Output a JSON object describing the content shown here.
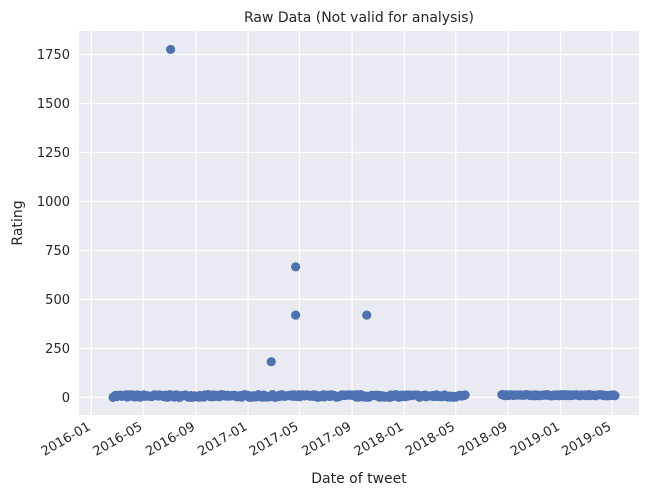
{
  "chart_data": {
    "type": "scatter",
    "title": "Raw Data (Not valid for analysis)",
    "xlabel": "Date of tweet",
    "ylabel": "Rating",
    "x_axis_type": "date",
    "xlim": [
      "2015-12-03",
      "2019-07-03"
    ],
    "ylim": [
      -90,
      1870
    ],
    "x_ticks": [
      "2016-01",
      "2016-05",
      "2016-09",
      "2017-01",
      "2017-05",
      "2017-09",
      "2018-01",
      "2018-05",
      "2018-09",
      "2019-01",
      "2019-05"
    ],
    "y_ticks": [
      0,
      250,
      500,
      750,
      1000,
      1250,
      1500,
      1750
    ],
    "grid": true,
    "colors": {
      "background": "#eaeaf2",
      "grid": "#ffffff",
      "marker": "#4c72b0"
    },
    "outliers": [
      {
        "x": "2016-07-04",
        "y": 1776
      },
      {
        "x": "2017-04-22",
        "y": 666
      },
      {
        "x": "2017-04-22",
        "y": 420
      },
      {
        "x": "2017-10-05",
        "y": 420
      },
      {
        "x": "2017-02-24",
        "y": 182
      }
    ],
    "series": [
      {
        "x_start": "2016-02-20",
        "x_end": "2018-05-25",
        "y_min": 0,
        "y_max": 14
      },
      {
        "x_start": "2018-08-17",
        "x_end": "2019-05-10",
        "y_min": 8,
        "y_max": 14
      }
    ]
  }
}
